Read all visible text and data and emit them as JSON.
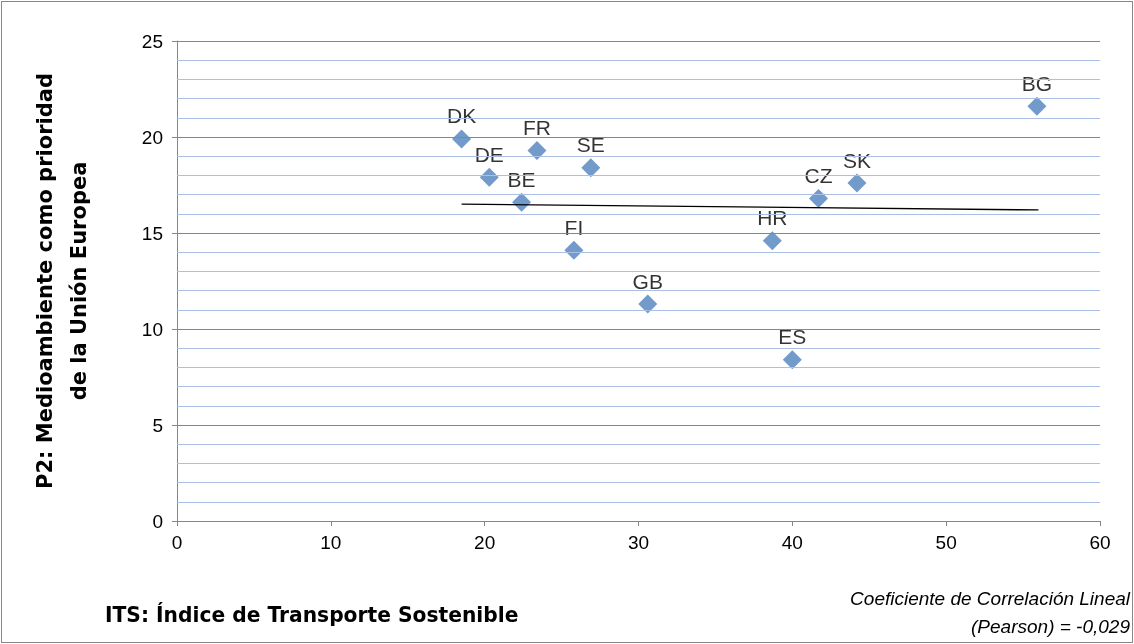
{
  "chart_data": {
    "type": "scatter",
    "xlabel": "ITS: Índice de Transporte Sostenible",
    "ylabel": "P2: Medioambiente como prioridad de la Unión Europea",
    "annotations": [
      "Coeficiente de Correlación Lineal (Pearson)  = -0,029"
    ],
    "xlim": [
      0,
      60
    ],
    "xticks": [
      0,
      10,
      20,
      30,
      40,
      50,
      60
    ],
    "ylim": [
      0,
      25
    ],
    "yticks": [
      0,
      {
        "value": 1,
        "label": null
      },
      {
        "value": 2,
        "label": null
      },
      {
        "value": 3,
        "label": null
      },
      {
        "value": 4,
        "label": null
      },
      5,
      {
        "value": 6,
        "label": null
      },
      {
        "value": 7,
        "label": null
      },
      {
        "value": 8,
        "label": null
      },
      {
        "value": 9,
        "label": null
      },
      10,
      {
        "value": 11,
        "label": null
      },
      {
        "value": 12,
        "label": null
      },
      {
        "value": 13,
        "label": null
      },
      {
        "value": 14,
        "label": null
      },
      15,
      {
        "value": 16,
        "label": null
      },
      {
        "value": 17,
        "label": null
      },
      {
        "value": 18,
        "label": null
      },
      {
        "value": 19,
        "label": null
      },
      20,
      {
        "value": 21,
        "label": null
      },
      {
        "value": 22,
        "label": null
      },
      {
        "value": 23,
        "label": null
      },
      {
        "value": 24,
        "label": null
      },
      25
    ],
    "grid": "y",
    "marker": "diamond",
    "legend": false,
    "series": [
      {
        "name": "DK",
        "color": "#4f81bd",
        "x": [
          18.5
        ],
        "values": [
          19.9
        ]
      },
      {
        "name": "DE",
        "color": "#4f81bd",
        "x": [
          20.3
        ],
        "values": [
          17.9
        ]
      },
      {
        "name": "BE",
        "color": "#4f81bd",
        "x": [
          22.4
        ],
        "values": [
          16.6
        ]
      },
      {
        "name": "FR",
        "color": "#4f81bd",
        "x": [
          23.4
        ],
        "values": [
          19.3
        ]
      },
      {
        "name": "SE",
        "color": "#4f81bd",
        "x": [
          26.9
        ],
        "values": [
          18.4
        ]
      },
      {
        "name": "FI",
        "color": "#4f81bd",
        "x": [
          25.8
        ],
        "values": [
          14.1
        ]
      },
      {
        "name": "GB",
        "color": "#4f81bd",
        "x": [
          30.6
        ],
        "values": [
          11.3
        ]
      },
      {
        "name": "HR",
        "color": "#4f81bd",
        "x": [
          38.7
        ],
        "values": [
          14.6
        ]
      },
      {
        "name": "ES",
        "color": "#4f81bd",
        "x": [
          40
        ],
        "values": [
          8.4
        ]
      },
      {
        "name": "CZ",
        "color": "#4f81bd",
        "x": [
          41.7
        ],
        "values": [
          16.8
        ]
      },
      {
        "name": "SK",
        "color": "#4f81bd",
        "x": [
          44.2
        ],
        "values": [
          17.6
        ]
      },
      {
        "name": "BG",
        "color": "#4f81bd",
        "x": [
          55.9
        ],
        "values": [
          21.6
        ]
      },
      {
        "type": "line",
        "marker": "none",
        "color": "#000000",
        "x": [
          18.5,
          56
        ],
        "values": [
          16.5,
          16.2
        ]
      }
    ]
  }
}
